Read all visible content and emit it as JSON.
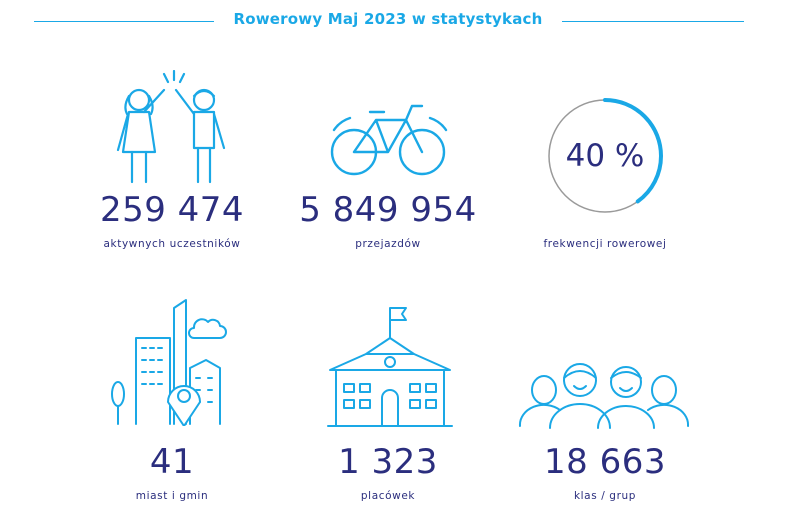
{
  "header": {
    "title": "Rowerowy Maj 2023 w statystykach"
  },
  "colors": {
    "accent": "#1aa8e6",
    "text": "#2b2e7e",
    "ring_track": "#9a9a9a"
  },
  "stats": [
    {
      "icon": "people-high-five-icon",
      "value": "259 474",
      "label": "aktywnych uczestników"
    },
    {
      "icon": "bicycle-icon",
      "value": "5 849 954",
      "label": "przejazdów"
    },
    {
      "icon": "progress-ring-icon",
      "value": "40 %",
      "label": "frekwencji rowerowej",
      "percent": 40
    },
    {
      "icon": "city-location-pin-icon",
      "value": "41",
      "label": "miast i gmin"
    },
    {
      "icon": "school-building-icon",
      "value": "1 323",
      "label": "placówek"
    },
    {
      "icon": "group-of-people-icon",
      "value": "18 663",
      "label": "klas / grup"
    }
  ]
}
